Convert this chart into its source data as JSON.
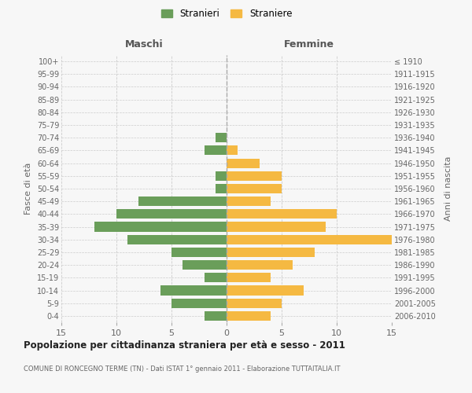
{
  "age_groups": [
    "0-4",
    "5-9",
    "10-14",
    "15-19",
    "20-24",
    "25-29",
    "30-34",
    "35-39",
    "40-44",
    "45-49",
    "50-54",
    "55-59",
    "60-64",
    "65-69",
    "70-74",
    "75-79",
    "80-84",
    "85-89",
    "90-94",
    "95-99",
    "100+"
  ],
  "birth_years": [
    "2006-2010",
    "2001-2005",
    "1996-2000",
    "1991-1995",
    "1986-1990",
    "1981-1985",
    "1976-1980",
    "1971-1975",
    "1966-1970",
    "1961-1965",
    "1956-1960",
    "1951-1955",
    "1946-1950",
    "1941-1945",
    "1936-1940",
    "1931-1935",
    "1926-1930",
    "1921-1925",
    "1916-1920",
    "1911-1915",
    "≤ 1910"
  ],
  "males": [
    2,
    5,
    6,
    2,
    4,
    5,
    9,
    12,
    10,
    8,
    1,
    1,
    0,
    2,
    1,
    0,
    0,
    0,
    0,
    0,
    0
  ],
  "females": [
    4,
    5,
    7,
    4,
    6,
    8,
    15,
    9,
    10,
    4,
    5,
    5,
    3,
    1,
    0,
    0,
    0,
    0,
    0,
    0,
    0
  ],
  "male_color": "#6a9e5a",
  "female_color": "#f5b942",
  "background_color": "#f7f7f7",
  "grid_color": "#cccccc",
  "title": "Popolazione per cittadinanza straniera per età e sesso - 2011",
  "subtitle": "COMUNE DI RONCEGNO TERME (TN) - Dati ISTAT 1° gennaio 2011 - Elaborazione TUTTAITALIA.IT",
  "ylabel_left": "Fasce di età",
  "ylabel_right": "Anni di nascita",
  "xlabel_left": "Maschi",
  "xlabel_right": "Femmine",
  "legend_male": "Stranieri",
  "legend_female": "Straniere",
  "xlim": 15,
  "bar_height": 0.75
}
